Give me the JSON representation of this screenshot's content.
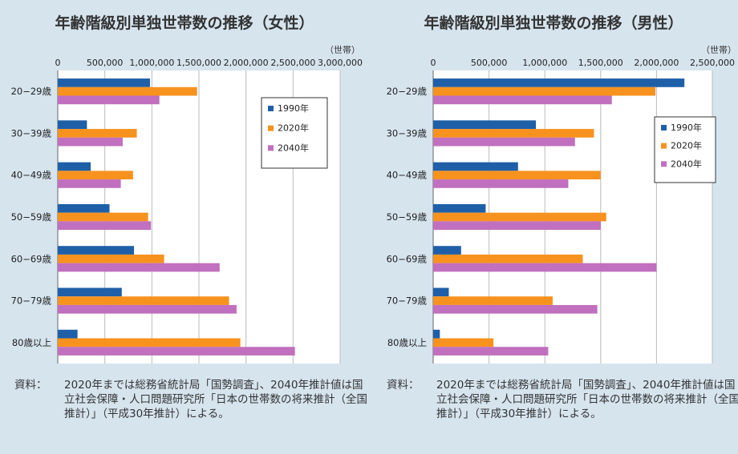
{
  "source_label": "資料：",
  "source_text": "2020年までは総務省統計局「国勢調査」、2040年推計値は国立社会保障・人口問題研究所「日本の世帯数の将来推計（全国推計）」（平成30年推計）による。",
  "chart_data": [
    {
      "type": "bar",
      "orientation": "horizontal",
      "title": "年齢階級別単独世帯数の推移（女性）",
      "unit": "（世帯）",
      "categories": [
        "20−29歳",
        "30−39歳",
        "40−49歳",
        "50−59歳",
        "60−69歳",
        "70−79歳",
        "80歳以上"
      ],
      "xlim": [
        0,
        3000000
      ],
      "ticks": [
        0,
        500000,
        1000000,
        1500000,
        2000000,
        2500000,
        3000000
      ],
      "tick_labels": [
        "0",
        "500,000",
        "1,000,000",
        "1,500,000",
        "2,000,000",
        "2,500,000",
        "3,000,000"
      ],
      "grid": true,
      "legend_position": "top-right",
      "series": [
        {
          "name": "1990年",
          "color": "#1f5fa8",
          "values": [
            980000,
            310000,
            350000,
            550000,
            810000,
            680000,
            210000
          ]
        },
        {
          "name": "2020年",
          "color": "#f7921e",
          "values": [
            1480000,
            840000,
            800000,
            960000,
            1130000,
            1820000,
            1940000
          ]
        },
        {
          "name": "2040年",
          "color": "#c16fbf",
          "values": [
            1080000,
            690000,
            670000,
            990000,
            1720000,
            1900000,
            2520000
          ]
        }
      ]
    },
    {
      "type": "bar",
      "orientation": "horizontal",
      "title": "年齢階級別単独世帯数の推移（男性）",
      "unit": "（世帯）",
      "categories": [
        "20−29歳",
        "30−39歳",
        "40−49歳",
        "50−59歳",
        "60−69歳",
        "70−79歳",
        "80歳以上"
      ],
      "xlim": [
        0,
        2500000
      ],
      "ticks": [
        0,
        500000,
        1000000,
        1500000,
        2000000,
        2500000
      ],
      "tick_labels": [
        "0",
        "500,000",
        "1,000,000",
        "1,500,000",
        "2,000,000",
        "2,500,000"
      ],
      "grid": true,
      "legend_position": "top-right",
      "series": [
        {
          "name": "1990年",
          "color": "#1f5fa8",
          "values": [
            2250000,
            920000,
            760000,
            470000,
            250000,
            140000,
            60000
          ]
        },
        {
          "name": "2020年",
          "color": "#f7921e",
          "values": [
            1990000,
            1440000,
            1500000,
            1550000,
            1340000,
            1070000,
            540000
          ]
        },
        {
          "name": "2040年",
          "color": "#c16fbf",
          "values": [
            1600000,
            1270000,
            1210000,
            1500000,
            2000000,
            1470000,
            1030000
          ]
        }
      ]
    }
  ]
}
